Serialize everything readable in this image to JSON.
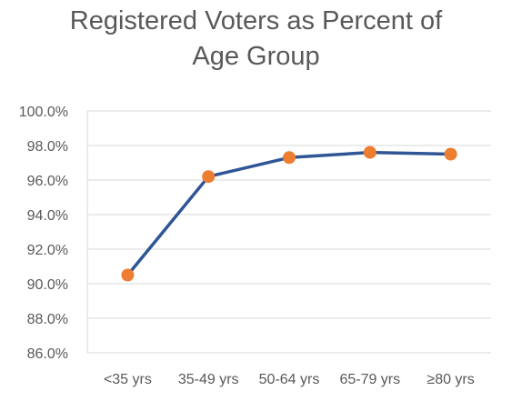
{
  "chart_data": {
    "type": "line",
    "title": "Registered Voters as Percent of\nAge Group",
    "categories": [
      "<35 yrs",
      "35-49 yrs",
      "50-64 yrs",
      "65-79 yrs",
      "≥80 yrs"
    ],
    "series": [
      {
        "values": [
          90.5,
          96.2,
          97.3,
          97.6,
          97.5
        ]
      }
    ],
    "ylim": [
      86.0,
      100.0
    ],
    "yticks": [
      "86.0%",
      "88.0%",
      "90.0%",
      "92.0%",
      "94.0%",
      "96.0%",
      "98.0%",
      "100.0%"
    ],
    "ytick_values": [
      86,
      88,
      90,
      92,
      94,
      96,
      98,
      100
    ],
    "grid": true,
    "legend": "none",
    "colors": {
      "line": "#2F5597",
      "marker": "#ED7D31",
      "grid": "#D9D9D9",
      "text": "#595959"
    }
  }
}
